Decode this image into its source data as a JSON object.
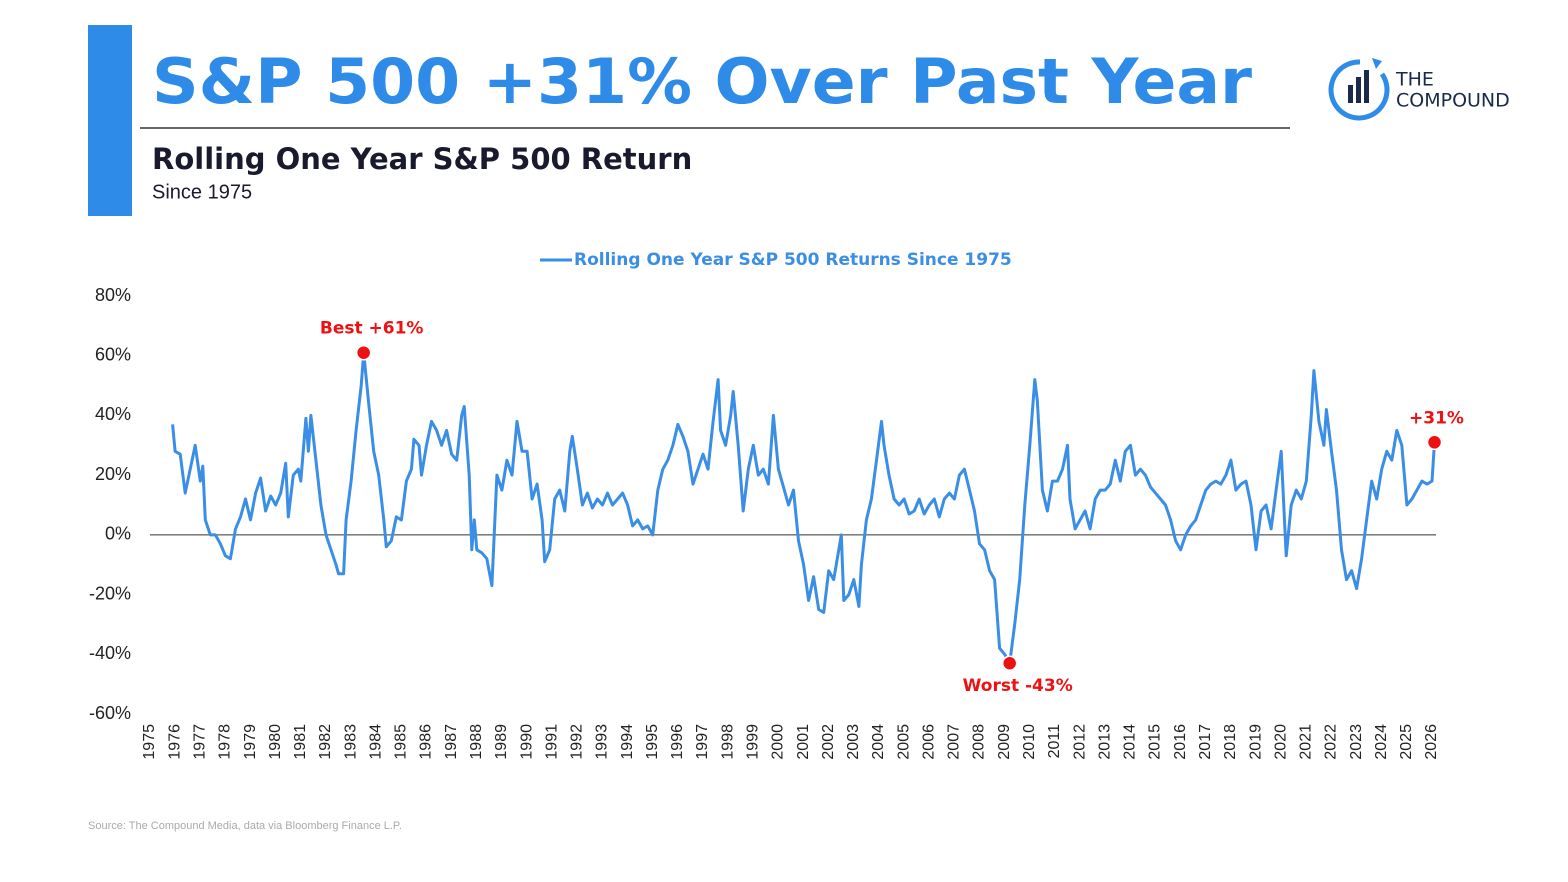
{
  "header": {
    "title": "S&P 500 +31% Over Past Year",
    "logo": [
      "THE",
      "COMPOUND"
    ]
  },
  "chart_data": {
    "type": "line",
    "title": "Rolling One Year S&P 500 Return",
    "subtitle": "Since 1975",
    "source": "Source: The Compound Media, data via Bloomberg Finance L.P.",
    "legend": "top",
    "grid": false,
    "xlim": [
      1975,
      2026
    ],
    "xticks": [
      1975,
      1976,
      1977,
      1978,
      1979,
      1980,
      1981,
      1982,
      1983,
      1984,
      1985,
      1986,
      1987,
      1988,
      1989,
      1990,
      1991,
      1992,
      1993,
      1994,
      1995,
      1996,
      1997,
      1998,
      1999,
      2000,
      2001,
      2002,
      2003,
      2004,
      2005,
      2006,
      2007,
      2008,
      2009,
      2010,
      2011,
      2012,
      2013,
      2014,
      2015,
      2016,
      2017,
      2018,
      2019,
      2020,
      2021,
      2022,
      2023,
      2024,
      2025,
      2026
    ],
    "ylim": [
      -60,
      80
    ],
    "yticks": [
      {
        "value": -60,
        "label": "-60%"
      },
      {
        "value": -40,
        "label": "-40%"
      },
      {
        "value": -20,
        "label": "-20%"
      },
      {
        "value": 0,
        "label": "0%"
      },
      {
        "value": 20,
        "label": "20%"
      },
      {
        "value": 40,
        "label": "40%"
      },
      {
        "value": 60,
        "label": "60%"
      },
      {
        "value": 80,
        "label": "80%"
      }
    ],
    "x": [
      1975.9,
      1976.0,
      1976.2,
      1976.4,
      1976.6,
      1976.8,
      1977.0,
      1977.1,
      1977.2,
      1977.4,
      1977.6,
      1977.8,
      1978.0,
      1978.2,
      1978.4,
      1978.6,
      1978.8,
      1979.0,
      1979.2,
      1979.4,
      1979.6,
      1979.8,
      1980.0,
      1980.2,
      1980.4,
      1980.5,
      1980.7,
      1980.9,
      1981.0,
      1981.2,
      1981.3,
      1981.4,
      1981.6,
      1981.8,
      1982.0,
      1982.2,
      1982.4,
      1982.5,
      1982.7,
      1982.8,
      1983.0,
      1983.2,
      1983.4,
      1983.5,
      1983.7,
      1983.9,
      1984.1,
      1984.3,
      1984.4,
      1984.6,
      1984.8,
      1985.0,
      1985.2,
      1985.4,
      1985.5,
      1985.7,
      1985.8,
      1986.0,
      1986.2,
      1986.4,
      1986.6,
      1986.8,
      1987.0,
      1987.2,
      1987.4,
      1987.5,
      1987.7,
      1987.8,
      1987.9,
      1988.0,
      1988.2,
      1988.4,
      1988.6,
      1988.8,
      1989.0,
      1989.2,
      1989.4,
      1989.6,
      1989.8,
      1990.0,
      1990.2,
      1990.4,
      1990.6,
      1990.7,
      1990.9,
      1991.1,
      1991.3,
      1991.5,
      1991.7,
      1991.8,
      1992.0,
      1992.2,
      1992.4,
      1992.6,
      1992.8,
      1993.0,
      1993.2,
      1993.4,
      1993.6,
      1993.8,
      1994.0,
      1994.2,
      1994.4,
      1994.6,
      1994.8,
      1995.0,
      1995.2,
      1995.4,
      1995.6,
      1995.8,
      1996.0,
      1996.2,
      1996.4,
      1996.6,
      1996.8,
      1997.0,
      1997.2,
      1997.4,
      1997.6,
      1997.7,
      1997.9,
      1998.1,
      1998.2,
      1998.4,
      1998.6,
      1998.8,
      1999.0,
      1999.2,
      1999.4,
      1999.6,
      1999.8,
      2000.0,
      2000.2,
      2000.4,
      2000.6,
      2000.8,
      2001.0,
      2001.2,
      2001.4,
      2001.6,
      2001.8,
      2002.0,
      2002.2,
      2002.4,
      2002.5,
      2002.6,
      2002.8,
      2003.0,
      2003.2,
      2003.3,
      2003.5,
      2003.7,
      2003.9,
      2004.1,
      2004.2,
      2004.4,
      2004.6,
      2004.8,
      2005.0,
      2005.2,
      2005.4,
      2005.6,
      2005.8,
      2006.0,
      2006.2,
      2006.4,
      2006.6,
      2006.8,
      2007.0,
      2007.2,
      2007.4,
      2007.6,
      2007.8,
      2008.0,
      2008.2,
      2008.4,
      2008.6,
      2008.8,
      2009.0,
      2009.2,
      2009.4,
      2009.6,
      2009.8,
      2010.0,
      2010.2,
      2010.3,
      2010.5,
      2010.7,
      2010.9,
      2011.1,
      2011.3,
      2011.5,
      2011.6,
      2011.8,
      2012.0,
      2012.2,
      2012.4,
      2012.6,
      2012.8,
      2013.0,
      2013.2,
      2013.4,
      2013.6,
      2013.8,
      2014.0,
      2014.2,
      2014.4,
      2014.6,
      2014.8,
      2015.0,
      2015.2,
      2015.4,
      2015.6,
      2015.8,
      2016.0,
      2016.2,
      2016.4,
      2016.6,
      2016.8,
      2017.0,
      2017.2,
      2017.4,
      2017.6,
      2017.8,
      2018.0,
      2018.2,
      2018.4,
      2018.6,
      2018.8,
      2019.0,
      2019.2,
      2019.4,
      2019.6,
      2019.8,
      2020.0,
      2020.2,
      2020.4,
      2020.6,
      2020.8,
      2021.0,
      2021.2,
      2021.3,
      2021.5,
      2021.7,
      2021.8,
      2022.0,
      2022.2,
      2022.4,
      2022.6,
      2022.8,
      2023.0,
      2023.2,
      2023.4,
      2023.6,
      2023.8,
      2024.0,
      2024.2,
      2024.4,
      2024.6,
      2024.8,
      2025.0,
      2025.2,
      2025.4,
      2025.6,
      2025.8,
      2026.0,
      2026.1
    ],
    "series": [
      {
        "name": "Rolling One Year S&P 500 Returns Since 1975",
        "color": "#3a8ee6",
        "values": [
          37,
          28,
          27,
          14,
          22,
          30,
          18,
          23,
          5,
          0,
          0,
          -3,
          -7,
          -8,
          2,
          6,
          12,
          5,
          14,
          19,
          8,
          13,
          10,
          14,
          24,
          6,
          20,
          22,
          18,
          39,
          28,
          40,
          25,
          10,
          0,
          -5,
          -10,
          -13,
          -13,
          5,
          18,
          35,
          50,
          61,
          44,
          28,
          20,
          5,
          -4,
          -2,
          6,
          5,
          18,
          22,
          32,
          30,
          20,
          30,
          38,
          35,
          30,
          35,
          27,
          25,
          40,
          43,
          20,
          -5,
          5,
          -5,
          -6,
          -8,
          -17,
          20,
          15,
          25,
          20,
          38,
          28,
          28,
          12,
          17,
          5,
          -9,
          -5,
          12,
          15,
          8,
          28,
          33,
          22,
          10,
          14,
          9,
          12,
          10,
          14,
          10,
          12,
          14,
          10,
          3,
          5,
          2,
          3,
          0,
          15,
          22,
          25,
          30,
          37,
          33,
          28,
          17,
          22,
          27,
          22,
          38,
          52,
          35,
          30,
          40,
          48,
          30,
          8,
          22,
          30,
          20,
          22,
          17,
          40,
          22,
          16,
          10,
          15,
          -2,
          -10,
          -22,
          -14,
          -25,
          -26,
          -12,
          -15,
          -5,
          0,
          -22,
          -20,
          -15,
          -24,
          -10,
          5,
          12,
          25,
          38,
          30,
          20,
          12,
          10,
          12,
          7,
          8,
          12,
          7,
          10,
          12,
          6,
          12,
          14,
          12,
          20,
          22,
          15,
          8,
          -3,
          -5,
          -12,
          -15,
          -38,
          -40,
          -43,
          -30,
          -15,
          10,
          30,
          52,
          45,
          15,
          8,
          18,
          18,
          22,
          30,
          12,
          2,
          5,
          8,
          2,
          12,
          15,
          15,
          17,
          25,
          18,
          28,
          30,
          20,
          22,
          20,
          16,
          14,
          12,
          10,
          5,
          -2,
          -5,
          0,
          3,
          5,
          10,
          15,
          17,
          18,
          17,
          20,
          25,
          15,
          17,
          18,
          10,
          -5,
          8,
          10,
          2,
          15,
          28,
          -7,
          10,
          15,
          12,
          18,
          40,
          55,
          38,
          30,
          42,
          28,
          15,
          -5,
          -15,
          -12,
          -18,
          -8,
          5,
          18,
          12,
          22,
          28,
          25,
          35,
          30,
          10,
          12,
          15,
          18,
          17,
          18,
          31
        ]
      }
    ],
    "annotations": [
      {
        "label": "Best +61%",
        "x": 1983.5,
        "y": 61
      },
      {
        "label": "Worst -43%",
        "x": 2009.2,
        "y": -43
      },
      {
        "label": "+31%",
        "x": 2026.1,
        "y": 31
      }
    ]
  }
}
